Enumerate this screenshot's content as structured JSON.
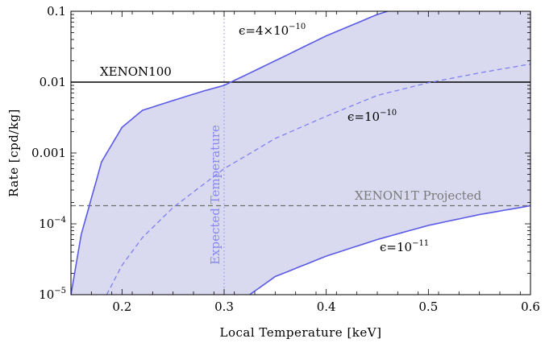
{
  "chart_data": {
    "type": "line",
    "xlabel": "Local Temperature [keV]",
    "ylabel": "Rate [cpd/kg]",
    "xlim": [
      0.15,
      0.6
    ],
    "ylim": [
      1e-05,
      0.1
    ],
    "yscale": "log",
    "grid": false,
    "x_ticks": [
      {
        "value": 0.2,
        "label": "0.2"
      },
      {
        "value": 0.3,
        "label": "0.3"
      },
      {
        "value": 0.4,
        "label": "0.4"
      },
      {
        "value": 0.5,
        "label": "0.5"
      },
      {
        "value": 0.6,
        "label": "0.6"
      }
    ],
    "y_ticks": [
      {
        "value": 0.1,
        "label": "0.1"
      },
      {
        "value": 0.01,
        "label": "0.01"
      },
      {
        "value": 0.001,
        "label": "0.001"
      },
      {
        "value": 0.0001,
        "base": "10",
        "exp": "−4"
      },
      {
        "value": 1e-05,
        "base": "10",
        "exp": "−5"
      }
    ],
    "series": [
      {
        "key": "eps4e-10",
        "label_prefix": "ϵ=4×10",
        "label_exp": "−10",
        "style": "solid",
        "color": "#5a5ae6",
        "points": [
          [
            0.15,
            1e-05
          ],
          [
            0.16,
            7e-05
          ],
          [
            0.18,
            0.00075
          ],
          [
            0.2,
            0.0023
          ],
          [
            0.22,
            0.004
          ],
          [
            0.25,
            0.0055
          ],
          [
            0.28,
            0.0075
          ],
          [
            0.3,
            0.009
          ],
          [
            0.35,
            0.02
          ],
          [
            0.4,
            0.045
          ],
          [
            0.45,
            0.09
          ],
          [
            0.46,
            0.1
          ]
        ]
      },
      {
        "key": "eps1e-10",
        "label_prefix": "ϵ=10",
        "label_exp": "−10",
        "style": "dashed",
        "color": "#8080f0",
        "points": [
          [
            0.185,
            1e-05
          ],
          [
            0.2,
            2.6e-05
          ],
          [
            0.22,
            6.4e-05
          ],
          [
            0.25,
            0.00017
          ],
          [
            0.3,
            0.0006
          ],
          [
            0.35,
            0.0016
          ],
          [
            0.4,
            0.0033
          ],
          [
            0.45,
            0.0065
          ],
          [
            0.5,
            0.0098
          ],
          [
            0.55,
            0.0135
          ],
          [
            0.6,
            0.018
          ]
        ]
      },
      {
        "key": "eps1e-11",
        "label_prefix": "ϵ=10",
        "label_exp": "−11",
        "style": "solid",
        "color": "#5a5ae6",
        "points": [
          [
            0.325,
            1e-05
          ],
          [
            0.35,
            1.8e-05
          ],
          [
            0.4,
            3.5e-05
          ],
          [
            0.45,
            6e-05
          ],
          [
            0.5,
            9.5e-05
          ],
          [
            0.55,
            0.000135
          ],
          [
            0.6,
            0.00018
          ]
        ]
      }
    ],
    "lines": [
      {
        "key": "xenon100",
        "label": "XENON100",
        "y": 0.01,
        "style": "solid",
        "color": "#000000"
      },
      {
        "key": "xenon1t",
        "label": "XENON1T  Projected",
        "y": 0.00018,
        "style": "dashed",
        "color": "#6e6e6e"
      }
    ],
    "vertical_lines": [
      {
        "key": "expected-temp",
        "label": "Expected Temperature",
        "x": 0.3,
        "style": "dotted",
        "color": "#8888f0"
      }
    ],
    "fill": {
      "between": [
        "eps4e-10",
        "eps1e-11"
      ],
      "color": "#d9d9ef"
    }
  }
}
